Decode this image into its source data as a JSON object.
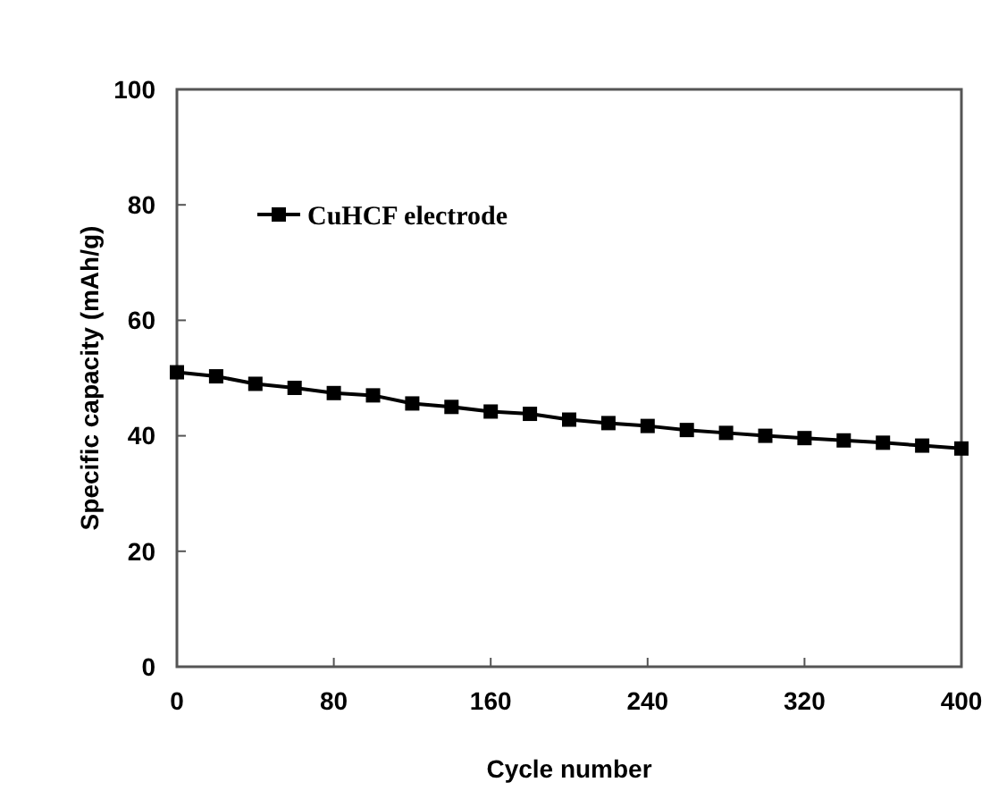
{
  "chart_data": {
    "type": "line",
    "xlabel": "Cycle number",
    "ylabel": "Specific capacity (mAh/g)",
    "x": [
      0,
      20,
      40,
      60,
      80,
      100,
      120,
      140,
      160,
      180,
      200,
      220,
      240,
      260,
      280,
      300,
      320,
      340,
      360,
      380,
      400
    ],
    "series": [
      {
        "name": "CuHCF electrode",
        "color": "#000000",
        "values": [
          51,
          50.3,
          49,
          48.3,
          47.4,
          47,
          45.6,
          45,
          44.2,
          43.8,
          42.8,
          42.2,
          41.7,
          41,
          40.5,
          40,
          39.6,
          39.2,
          38.8,
          38.3,
          37.8
        ]
      }
    ],
    "xlim": [
      0,
      400
    ],
    "xticks": [
      0,
      80,
      160,
      240,
      320,
      400
    ],
    "ylim": [
      0,
      100
    ],
    "yticks": [
      0,
      20,
      40,
      60,
      80,
      100
    ],
    "marker": "square",
    "line_style": "solid",
    "legend": "top left",
    "grid": false
  }
}
